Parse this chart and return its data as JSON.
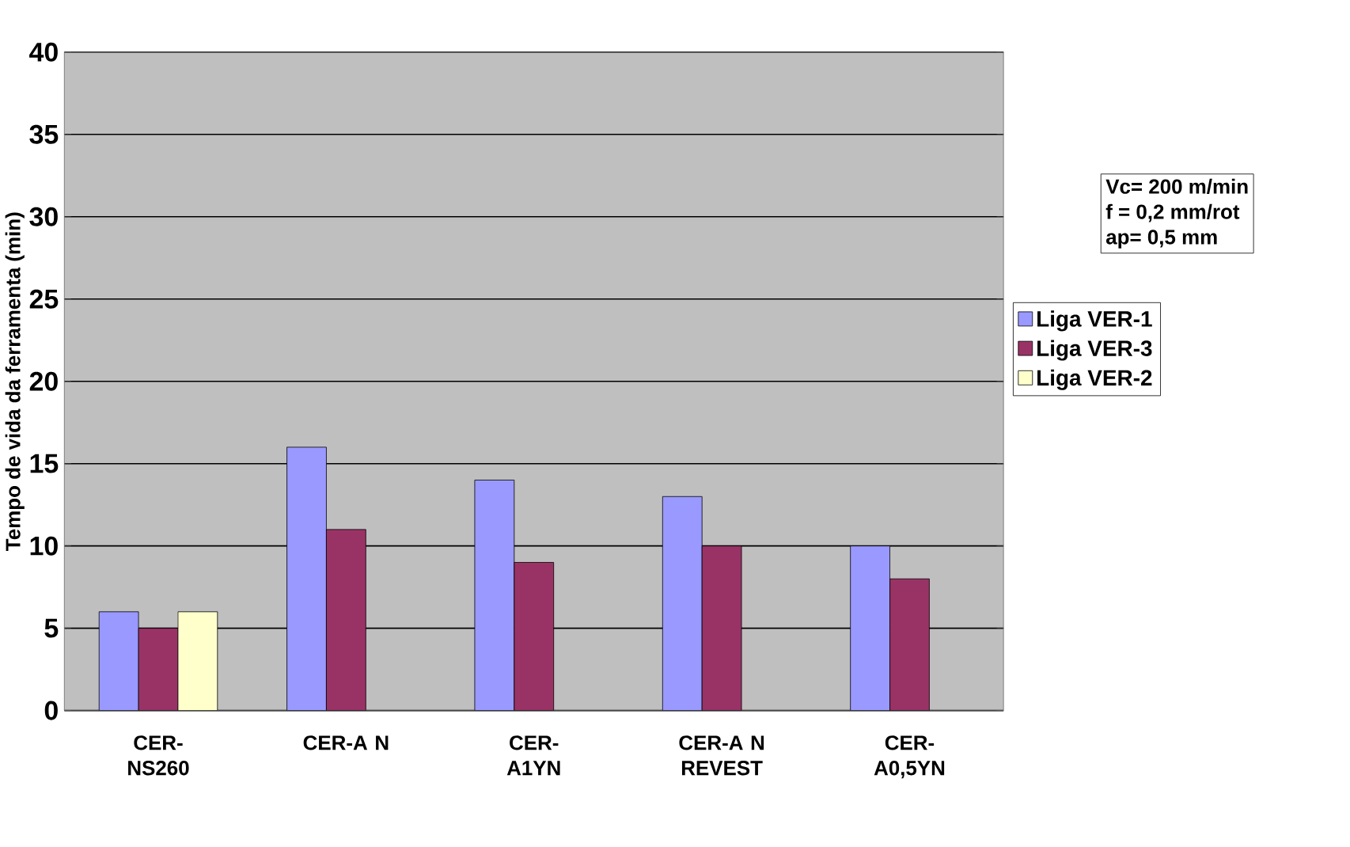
{
  "chart_data": {
    "type": "bar",
    "ylabel": "Tempo de vida da ferramenta (min)",
    "categories": [
      "CER- NS260",
      "CER-A N",
      "CER- A1YN",
      "CER-A N REVEST",
      "CER- A0,5YN"
    ],
    "series": [
      {
        "name": "Liga VER-1",
        "color": "#9999ff",
        "values": [
          6,
          16,
          14,
          13,
          10
        ]
      },
      {
        "name": "Liga VER-3",
        "color": "#993366",
        "values": [
          5,
          11,
          9,
          10,
          8
        ]
      },
      {
        "name": "Liga VER-2",
        "color": "#ffffcc",
        "values": [
          6,
          null,
          null,
          null,
          null
        ]
      }
    ],
    "ylim": [
      0,
      40
    ],
    "yticks": [
      0,
      5,
      10,
      15,
      20,
      25,
      30,
      35,
      40
    ],
    "grid": "y",
    "legend": "right",
    "annotations": [
      "Vc= 200 m/min",
      "f = 0,2 mm/rot",
      "ap= 0,5 mm"
    ]
  }
}
